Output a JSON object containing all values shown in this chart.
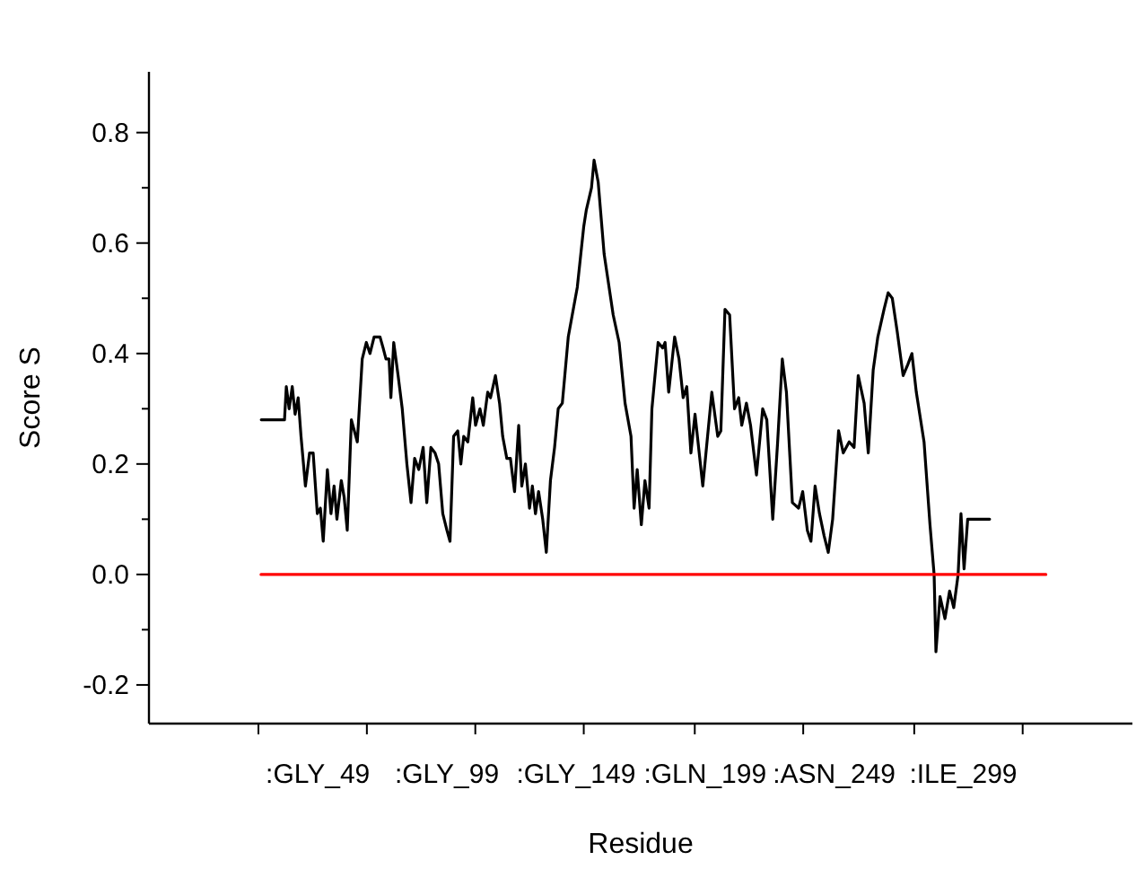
{
  "chart_data": {
    "type": "line",
    "xlabel": "Residue",
    "ylabel": "Score S",
    "xlim": [
      -16.4,
      364.5
    ],
    "ylim": [
      -0.27,
      0.91
    ],
    "xticks": [
      {
        "value": 26,
        "label": null
      },
      {
        "value": 49,
        "label": ":GLY_49"
      },
      {
        "value": 68,
        "label": null
      },
      {
        "value": 99,
        "label": ":GLY_99"
      },
      {
        "value": 110,
        "label": null
      },
      {
        "value": 149,
        "label": ":GLY_149"
      },
      {
        "value": 152,
        "label": null
      },
      {
        "value": 195,
        "label": null
      },
      {
        "value": 199,
        "label": ":GLN_199"
      },
      {
        "value": 237,
        "label": null
      },
      {
        "value": 249,
        "label": ":ASN_249"
      },
      {
        "value": 280,
        "label": null
      },
      {
        "value": 299,
        "label": ":ILE_299"
      },
      {
        "value": 322,
        "label": null
      }
    ],
    "yticks": [
      {
        "value": -0.2,
        "label": "-0.2"
      },
      {
        "value": -0.1,
        "label": null
      },
      {
        "value": 0,
        "label": "0.0"
      },
      {
        "value": 0.1,
        "label": null
      },
      {
        "value": 0.2,
        "label": "0.2"
      },
      {
        "value": 0.3,
        "label": null
      },
      {
        "value": 0.4,
        "label": "0.4"
      },
      {
        "value": 0.5,
        "label": null
      },
      {
        "value": 0.6,
        "label": "0.6"
      },
      {
        "value": 0.7,
        "label": null
      },
      {
        "value": 0.8,
        "label": "0.8"
      }
    ],
    "grid": false,
    "marker": "none",
    "line_style": "solid",
    "series": [
      {
        "color": "#000000",
        "x": [
          27.1,
          36.1,
          36.8,
          37.9,
          39.1,
          40.2,
          41.4,
          42.5,
          44.2,
          45.8,
          47.2,
          48.8,
          50.0,
          51.1,
          52.7,
          54.1,
          55.3,
          56.4,
          58.1,
          59.2,
          60.4,
          62.0,
          64.3,
          66.2,
          67.8,
          69.2,
          70.8,
          72.0,
          73.1,
          74.3,
          75.4,
          76.6,
          77.3,
          78.4,
          80.1,
          81.7,
          83.5,
          85.1,
          86.5,
          88.1,
          89.8,
          91.2,
          92.8,
          94.4,
          95.8,
          97.4,
          99.0,
          100.2,
          101.6,
          103.2,
          104.4,
          105.5,
          107.1,
          109.0,
          110.1,
          111.8,
          113.1,
          114.8,
          115.9,
          117.8,
          119.4,
          120.6,
          122.2,
          123.6,
          125.2,
          126.8,
          128.0,
          129.4,
          131.0,
          132.1,
          133.3,
          134.5,
          136.1,
          137.5,
          139.1,
          140.7,
          142.1,
          143.7,
          146.0,
          149.5,
          152.0,
          153.0,
          155.0,
          156.0,
          157.6,
          159.9,
          163.4,
          165.7,
          168.0,
          170.3,
          171.5,
          172.7,
          174.3,
          175.7,
          177.3,
          178.4,
          180.8,
          182.6,
          183.5,
          184.9,
          187.2,
          188.9,
          190.5,
          191.9,
          193.5,
          195.1,
          198.1,
          201.6,
          203.9,
          205.1,
          206.7,
          208.5,
          210.4,
          212.0,
          213.2,
          215.0,
          216.6,
          218.9,
          221.3,
          222.9,
          225.2,
          227.1,
          228.9,
          230.5,
          232.8,
          235.2,
          236.8,
          238.6,
          240.0,
          241.6,
          243.3,
          245.1,
          246.7,
          248.4,
          250.7,
          252.5,
          254.8,
          256.7,
          258.3,
          260.6,
          262.2,
          264.1,
          265.9,
          268.3,
          269.9,
          271.5,
          273.4,
          275.7,
          277.5,
          279.1,
          280.8,
          283.8,
          286.1,
          287.7,
          288.4,
          290.0,
          291.9,
          293.7,
          295.3,
          297.0,
          298.1,
          299.3,
          300.7,
          309.2
        ],
        "values": [
          0.28,
          0.28,
          0.34,
          0.3,
          0.34,
          0.29,
          0.32,
          0.25,
          0.16,
          0.22,
          0.22,
          0.11,
          0.12,
          0.06,
          0.19,
          0.11,
          0.16,
          0.1,
          0.17,
          0.14,
          0.08,
          0.28,
          0.24,
          0.39,
          0.42,
          0.4,
          0.43,
          0.43,
          0.43,
          0.41,
          0.39,
          0.39,
          0.32,
          0.42,
          0.36,
          0.3,
          0.2,
          0.13,
          0.21,
          0.19,
          0.23,
          0.13,
          0.23,
          0.22,
          0.2,
          0.11,
          0.08,
          0.06,
          0.25,
          0.26,
          0.2,
          0.25,
          0.24,
          0.32,
          0.27,
          0.3,
          0.27,
          0.33,
          0.32,
          0.36,
          0.31,
          0.25,
          0.21,
          0.21,
          0.15,
          0.27,
          0.16,
          0.2,
          0.12,
          0.16,
          0.11,
          0.15,
          0.1,
          0.04,
          0.17,
          0.23,
          0.3,
          0.31,
          0.43,
          0.52,
          0.63,
          0.66,
          0.7,
          0.75,
          0.71,
          0.58,
          0.47,
          0.42,
          0.31,
          0.25,
          0.12,
          0.19,
          0.09,
          0.17,
          0.12,
          0.3,
          0.42,
          0.41,
          0.42,
          0.33,
          0.43,
          0.39,
          0.32,
          0.34,
          0.22,
          0.29,
          0.16,
          0.33,
          0.25,
          0.26,
          0.48,
          0.47,
          0.3,
          0.32,
          0.27,
          0.31,
          0.27,
          0.18,
          0.3,
          0.28,
          0.1,
          0.24,
          0.39,
          0.33,
          0.13,
          0.12,
          0.15,
          0.08,
          0.06,
          0.16,
          0.11,
          0.07,
          0.04,
          0.1,
          0.26,
          0.22,
          0.24,
          0.23,
          0.36,
          0.31,
          0.22,
          0.37,
          0.43,
          0.48,
          0.51,
          0.5,
          0.44,
          0.36,
          0.38,
          0.4,
          0.33,
          0.24,
          0.09,
          0.0,
          -0.14,
          -0.04,
          -0.08,
          -0.03,
          -0.06,
          0.0,
          0.11,
          0.01,
          0.1,
          0.1
        ]
      },
      {
        "color": "#ff0000",
        "x": [
          27,
          331
        ],
        "values": [
          0,
          0
        ]
      }
    ]
  }
}
